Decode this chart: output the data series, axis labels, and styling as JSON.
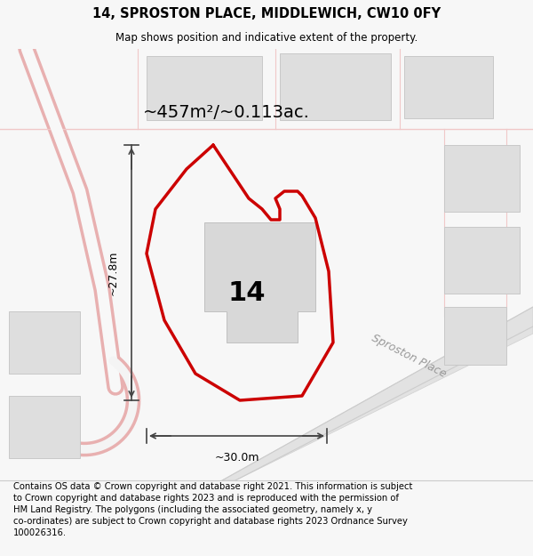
{
  "title": "14, SPROSTON PLACE, MIDDLEWICH, CW10 0FY",
  "subtitle": "Map shows position and indicative extent of the property.",
  "footer": "Contains OS data © Crown copyright and database right 2021. This information is subject\nto Crown copyright and database rights 2023 and is reproduced with the permission of\nHM Land Registry. The polygons (including the associated geometry, namely x, y\nco-ordinates) are subject to Crown copyright and database rights 2023 Ordnance Survey\n100026316.",
  "area_text": "~457m²/~0.113ac.",
  "label_number": "14",
  "dim_width": "~30.0m",
  "dim_height": "~27.8m",
  "road_label": "Sproston Place",
  "bg_color": "#f7f7f7",
  "map_bg": "#f2f2f2",
  "plot_line_color": "#cc0000",
  "dim_line_color": "#444444",
  "title_fontsize": 10.5,
  "subtitle_fontsize": 8.5,
  "footer_fontsize": 7.2,
  "pink": "#e8b0b0",
  "pink_light": "#f0c8c8",
  "building_fill": "#dedede",
  "building_edge": "#c8c8c8",
  "road_fill": "#e8e8e8",
  "road_dark": "#d8d8d8"
}
